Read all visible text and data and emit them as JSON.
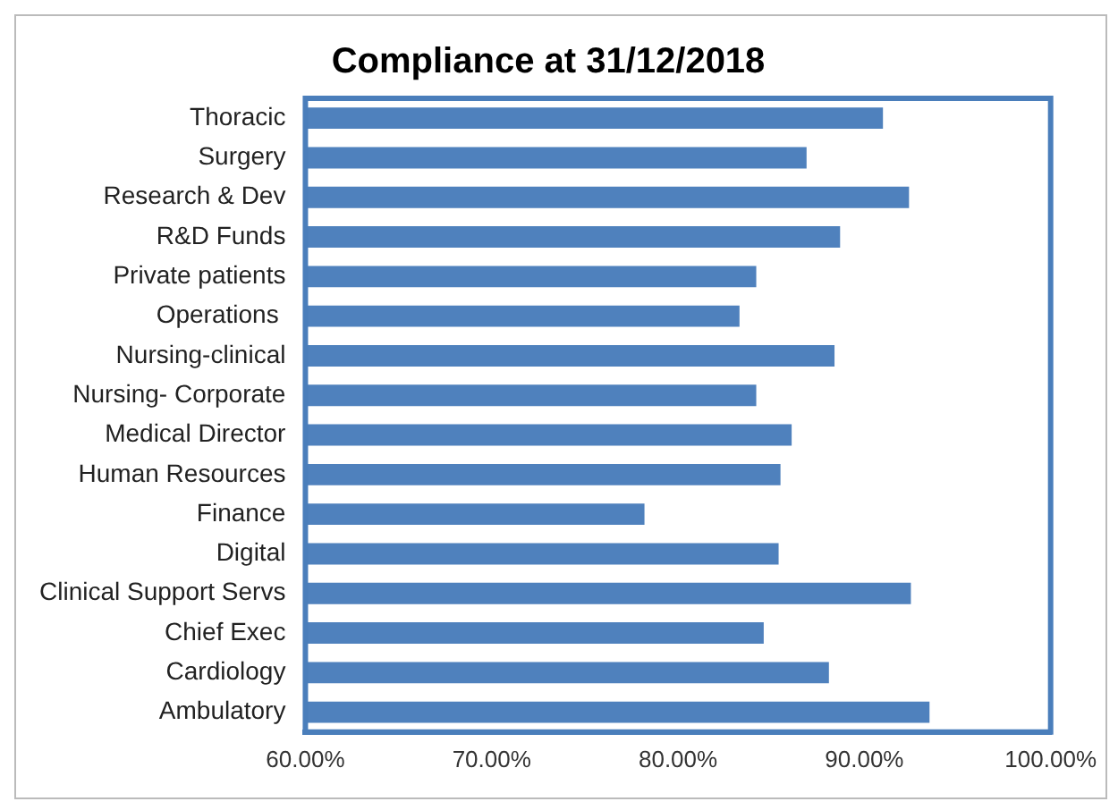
{
  "chart_data": {
    "type": "bar",
    "orientation": "horizontal",
    "title": "Compliance at 31/12/2018",
    "categories": [
      "Thoracic",
      "Surgery",
      "Research & Dev",
      "R&D Funds",
      "Private patients",
      "Operations ",
      "Nursing-clinical",
      "Nursing- Corporate",
      "Medical Director",
      "Human Resources",
      "Finance",
      "Digital",
      "Clinical Support Servs",
      "Chief Exec",
      "Cardiology",
      "Ambulatory"
    ],
    "values": [
      91.0,
      86.9,
      92.4,
      88.7,
      84.2,
      83.3,
      88.4,
      84.2,
      86.1,
      85.5,
      78.2,
      85.4,
      92.5,
      84.6,
      88.1,
      93.5
    ],
    "color": "#4f81bd",
    "xlim": [
      60,
      100
    ],
    "xticks": [
      {
        "value": 60,
        "label": "60.00%"
      },
      {
        "value": 70,
        "label": "70.00%"
      },
      {
        "value": 80,
        "label": "80.00%"
      },
      {
        "value": 90,
        "label": "90.00%"
      },
      {
        "value": 100,
        "label": "100.00%"
      }
    ],
    "grid": false,
    "legend": false
  }
}
